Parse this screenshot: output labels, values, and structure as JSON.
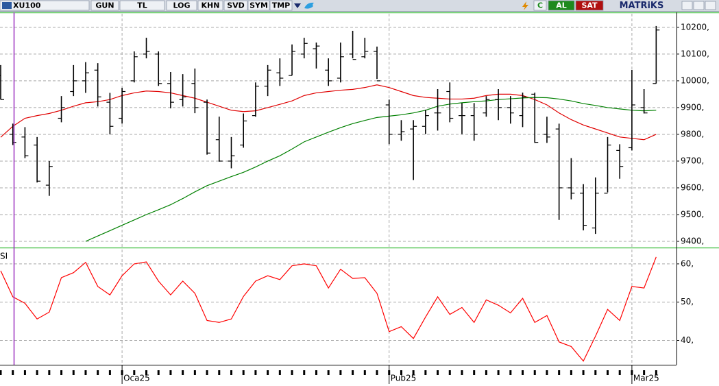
{
  "toolbar": {
    "symbol": "XU100",
    "buttons": [
      "GUN",
      "TL",
      "LOG",
      "KHN",
      "SVD",
      "SYM",
      "TMP"
    ],
    "c": "C",
    "buy": "AL",
    "sell": "SAT",
    "brand": "MATRiKS"
  },
  "chart_data": [
    {
      "type": "ohlc",
      "color": "#000000",
      "grid": true,
      "categories": [
        null,
        null,
        null,
        null,
        null,
        null,
        null,
        null,
        null,
        null,
        "Oca25",
        null,
        null,
        null,
        null,
        null,
        null,
        null,
        null,
        null,
        null,
        null,
        null,
        null,
        null,
        null,
        null,
        null,
        null,
        null,
        null,
        null,
        "Pub25",
        null,
        null,
        null,
        null,
        null,
        null,
        null,
        null,
        null,
        null,
        null,
        null,
        null,
        null,
        null,
        null,
        null,
        null,
        null,
        "Mar25",
        null,
        null
      ],
      "open": [
        10020,
        9800,
        9790,
        9760,
        9610,
        9860,
        9960,
        10000,
        10040,
        9920,
        9860,
        10000,
        10100,
        10100,
        9990,
        9930,
        9990,
        9920,
        9780,
        9700,
        9760,
        9870,
        9980,
        10030,
        10020,
        10100,
        10120,
        10040,
        10010,
        10100,
        10090,
        10110,
        9910,
        9800,
        9820,
        9830,
        9880,
        9960,
        9870,
        9870,
        9880,
        9930,
        9900,
        9870,
        9950,
        9800,
        9820,
        9600,
        9580,
        9450,
        9580,
        9740,
        9750,
        9900,
        9990
      ],
      "high": [
        10059,
        9840,
        9827,
        9790,
        9700,
        9943,
        10059,
        10070,
        10066,
        9955,
        9974,
        10110,
        10161,
        10110,
        10033,
        10025,
        10046,
        9930,
        9866,
        9790,
        9878,
        9994,
        10059,
        10084,
        10136,
        10161,
        10143,
        10084,
        10143,
        10187,
        10161,
        10128,
        9930,
        9853,
        9853,
        9892,
        9969,
        9994,
        9917,
        9917,
        9943,
        9969,
        9943,
        9956,
        9956,
        9866,
        9840,
        9711,
        9614,
        9639,
        9790,
        9763,
        10041,
        9969,
        10205
      ],
      "low": [
        9930,
        9760,
        9711,
        9620,
        9570,
        9845,
        9943,
        9955,
        9904,
        9800,
        9840,
        9994,
        10084,
        9981,
        9897,
        9904,
        9879,
        9724,
        9698,
        9673,
        9750,
        9866,
        9943,
        9981,
        10020,
        10084,
        10046,
        9981,
        9994,
        10084,
        10084,
        10007,
        9763,
        9776,
        9629,
        9801,
        9814,
        9845,
        9801,
        9776,
        9866,
        9853,
        9840,
        9827,
        9768,
        9768,
        9480,
        9557,
        9441,
        9428,
        9583,
        9634,
        9740,
        9878,
        9990
      ],
      "close": [
        9930,
        9770,
        9720,
        9625,
        9680,
        9900,
        10000,
        10030,
        9940,
        9830,
        9960,
        10090,
        10110,
        9990,
        9920,
        9940,
        9900,
        9730,
        9700,
        9720,
        9850,
        9980,
        10040,
        10010,
        10110,
        10140,
        10130,
        10000,
        10090,
        10080,
        10110,
        10000,
        9800,
        9810,
        9830,
        9870,
        9880,
        9860,
        9870,
        9800,
        9930,
        9900,
        9880,
        9940,
        9770,
        9790,
        9600,
        9580,
        9460,
        9580,
        9760,
        9680,
        9910,
        9880,
        10190
      ],
      "overlays": [
        {
          "color": "#e00000",
          "values": [
            9789,
            9830,
            9860,
            9870,
            9878,
            9890,
            9905,
            9918,
            9922,
            9930,
            9945,
            9955,
            9962,
            9960,
            9955,
            9945,
            9935,
            9920,
            9905,
            9890,
            9885,
            9888,
            9900,
            9912,
            9925,
            9945,
            9955,
            9960,
            9965,
            9968,
            9975,
            9985,
            9975,
            9960,
            9945,
            9938,
            9935,
            9932,
            9932,
            9935,
            9945,
            9950,
            9950,
            9945,
            9930,
            9910,
            9880,
            9855,
            9835,
            9820,
            9805,
            9790,
            9785,
            9780,
            9800
          ]
        },
        {
          "color": "#008000",
          "values": [
            null,
            null,
            null,
            null,
            null,
            null,
            null,
            9400,
            9420,
            9440,
            9460,
            9480,
            9500,
            9518,
            9537,
            9560,
            9585,
            9608,
            9625,
            9642,
            9658,
            9678,
            9700,
            9720,
            9745,
            9772,
            9790,
            9808,
            9825,
            9840,
            9852,
            9863,
            9868,
            9873,
            9880,
            9890,
            9905,
            9913,
            9918,
            9922,
            9925,
            9930,
            9933,
            9936,
            9938,
            9937,
            9932,
            9925,
            9915,
            9908,
            9900,
            9895,
            9890,
            9888,
            9890
          ]
        }
      ],
      "ylim": [
        9377,
        10256
      ],
      "yticks": [
        {
          "value": 9400,
          "label": "9400,"
        },
        {
          "value": 9500,
          "label": "9500,"
        },
        {
          "value": 9600,
          "label": "9600,"
        },
        {
          "value": 9700,
          "label": "9700,"
        },
        {
          "value": 9800,
          "label": "9800,"
        },
        {
          "value": 9900,
          "label": "9900,"
        },
        {
          "value": 10000,
          "label": "10000,"
        },
        {
          "value": 10100,
          "label": "10100,"
        },
        {
          "value": 10200,
          "label": "10200,"
        }
      ]
    },
    {
      "type": "line",
      "title": "SI",
      "color": "#ff0000",
      "grid": true,
      "values": [
        58.2,
        51.4,
        49.7,
        45.6,
        47.4,
        56.4,
        57.7,
        60.4,
        54.1,
        51.9,
        56.9,
        60,
        60.5,
        55.5,
        51.9,
        55.5,
        52.3,
        45.2,
        44.7,
        45.6,
        51.5,
        55.5,
        56.9,
        55.9,
        59.5,
        60,
        59.5,
        53.7,
        58.6,
        56.2,
        56.4,
        52.3,
        42.3,
        43.6,
        40.5,
        46.1,
        51.4,
        46.8,
        48.6,
        44.7,
        50.6,
        49.2,
        47.2,
        51,
        44.7,
        46.5,
        39.6,
        38.4,
        34.6,
        41.1,
        48.1,
        45.2,
        54.1,
        53.7,
        61.8
      ],
      "ylim": [
        34,
        64.1
      ],
      "yticks": [
        {
          "value": 40,
          "label": "40,"
        },
        {
          "value": 50,
          "label": "50,"
        },
        {
          "value": 60,
          "label": "60,"
        }
      ]
    }
  ]
}
